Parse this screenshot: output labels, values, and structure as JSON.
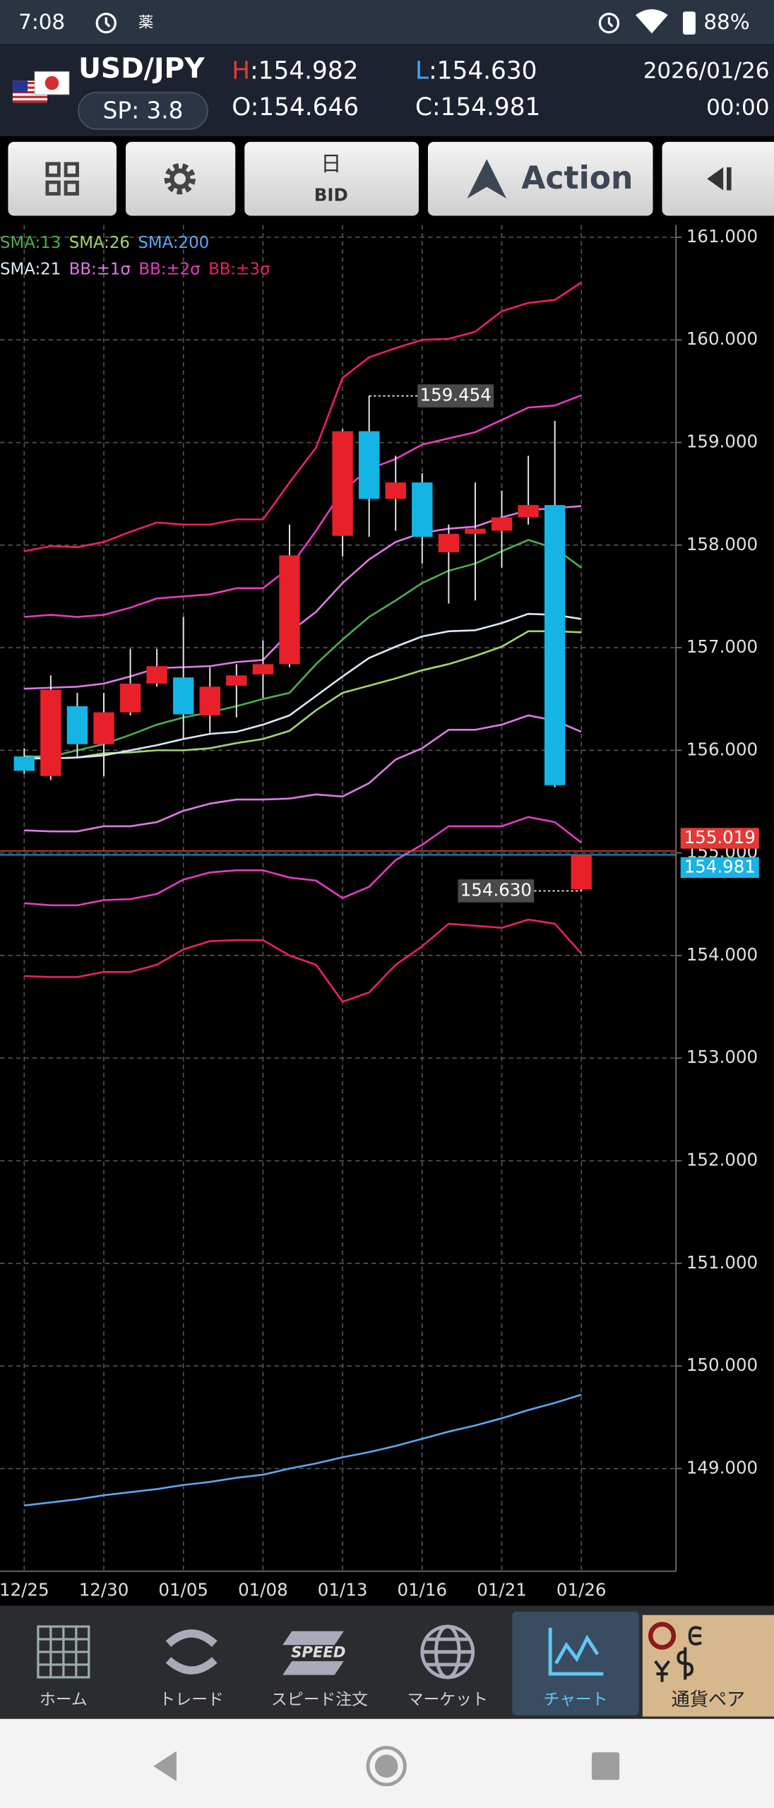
{
  "status_bar": {
    "time": "7:08",
    "icon_text": "薬",
    "battery": "88%"
  },
  "header": {
    "pair": "USD/JPY",
    "spread": "SP: 3.8",
    "high": "H:154.982",
    "low": "L:154.630",
    "open": "O:154.646",
    "close": "C:154.981",
    "date": "2026/01/26",
    "time": "00:00"
  },
  "toolbar": {
    "period": "日",
    "price_type": "BID",
    "action": "Action"
  },
  "chart": {
    "type": "candlestick",
    "categories": [
      "12/25",
      null,
      null,
      "12/30",
      null,
      null,
      "01/05",
      null,
      null,
      "01/08",
      null,
      null,
      "01/13",
      null,
      null,
      "01/16",
      null,
      null,
      "01/21",
      null,
      null,
      "01/26"
    ],
    "candles": {
      "open": [
        155.94,
        155.75,
        156.43,
        156.06,
        156.37,
        156.65,
        156.71,
        156.34,
        156.63,
        156.74,
        156.84,
        null,
        158.09,
        159.11,
        158.45,
        158.61,
        157.93,
        158.11,
        158.14,
        158.27,
        158.39,
        154.646
      ],
      "high": [
        156.02,
        156.73,
        156.56,
        156.56,
        156.99,
        156.99,
        157.3,
        156.81,
        156.84,
        157.07,
        158.2,
        null,
        159.13,
        159.454,
        158.87,
        158.7,
        158.2,
        158.61,
        158.53,
        158.87,
        159.21,
        154.982
      ],
      "low": [
        155.77,
        155.71,
        155.93,
        155.75,
        156.34,
        156.62,
        156.11,
        156.17,
        156.32,
        156.51,
        156.81,
        null,
        157.89,
        158.08,
        158.14,
        157.82,
        157.43,
        157.46,
        157.78,
        158.2,
        155.64,
        154.63
      ],
      "close": [
        155.8,
        156.59,
        156.06,
        156.37,
        156.65,
        156.82,
        156.35,
        156.62,
        156.73,
        156.84,
        157.9,
        null,
        159.11,
        158.45,
        158.61,
        158.08,
        158.11,
        158.16,
        158.27,
        158.39,
        155.66,
        154.981
      ]
    },
    "up_color": "#e8202a",
    "down_color": "#14b4e4",
    "series": [
      {
        "name": "SMA:13",
        "color": "#4caf50",
        "values": [
          155.94,
          155.94,
          156.0,
          156.06,
          156.15,
          156.25,
          156.32,
          156.37,
          156.43,
          156.5,
          156.56,
          156.84,
          157.08,
          157.3,
          157.46,
          157.63,
          157.75,
          157.82,
          157.94,
          158.05,
          157.97,
          157.78
        ]
      },
      {
        "name": "SMA:26",
        "color": "#a5d66b",
        "values": [
          155.94,
          155.92,
          155.93,
          155.97,
          155.98,
          156.0,
          156.0,
          156.02,
          156.07,
          156.11,
          156.19,
          156.39,
          156.56,
          156.63,
          156.7,
          156.78,
          156.84,
          156.92,
          157.01,
          157.16,
          157.16,
          157.15
        ]
      },
      {
        "name": "SMA:200",
        "color": "#5aa9f0",
        "values": [
          148.64,
          148.67,
          148.7,
          148.74,
          148.77,
          148.8,
          148.84,
          148.87,
          148.91,
          148.94,
          149.0,
          149.05,
          149.11,
          149.16,
          149.22,
          149.29,
          149.36,
          149.42,
          149.49,
          149.57,
          149.64,
          149.72
        ]
      },
      {
        "name": "SMA:21",
        "color": "#dce9f7",
        "values": [
          155.92,
          155.92,
          155.93,
          155.95,
          156.0,
          156.05,
          156.11,
          156.16,
          156.18,
          156.25,
          156.34,
          156.53,
          156.72,
          156.9,
          157.01,
          157.11,
          157.16,
          157.17,
          157.24,
          157.33,
          157.32,
          157.28
        ]
      },
      {
        "name": "BB:±1σ",
        "color": "#e07ae8",
        "upper": [
          156.6,
          156.61,
          156.62,
          156.65,
          156.72,
          156.8,
          156.81,
          156.82,
          156.86,
          156.88,
          157.15,
          157.35,
          157.63,
          157.86,
          158.03,
          158.12,
          158.16,
          158.18,
          158.27,
          158.34,
          158.36,
          158.38
        ],
        "lower": [
          155.22,
          155.21,
          155.21,
          155.26,
          155.26,
          155.3,
          155.41,
          155.48,
          155.52,
          155.52,
          155.53,
          155.57,
          155.55,
          155.68,
          155.91,
          156.02,
          156.2,
          156.2,
          156.25,
          156.34,
          156.29,
          156.18
        ]
      },
      {
        "name": "BB:±2σ",
        "color": "#e83cc0",
        "upper": [
          157.3,
          157.32,
          157.3,
          157.32,
          157.39,
          157.48,
          157.5,
          157.52,
          157.58,
          157.58,
          157.78,
          158.14,
          158.53,
          158.74,
          158.84,
          158.98,
          159.04,
          159.1,
          159.22,
          159.34,
          159.36,
          159.46
        ],
        "lower": [
          154.51,
          154.49,
          154.49,
          154.54,
          154.55,
          154.6,
          154.74,
          154.81,
          154.83,
          154.83,
          154.76,
          154.73,
          154.56,
          154.67,
          154.93,
          155.08,
          155.26,
          155.26,
          155.26,
          155.35,
          155.3,
          155.1
        ]
      },
      {
        "name": "BB:±3σ",
        "color": "#ee1f66",
        "upper": [
          157.94,
          157.99,
          157.98,
          158.03,
          158.13,
          158.22,
          158.2,
          158.2,
          158.25,
          158.25,
          158.61,
          158.95,
          159.63,
          159.83,
          159.92,
          160.0,
          160.01,
          160.08,
          160.28,
          160.36,
          160.39,
          160.56
        ],
        "lower": [
          153.8,
          153.79,
          153.79,
          153.84,
          153.84,
          153.91,
          154.06,
          154.14,
          154.15,
          154.15,
          154.0,
          153.91,
          153.55,
          153.64,
          153.91,
          154.09,
          154.31,
          154.29,
          154.27,
          154.35,
          154.31,
          154.02
        ]
      }
    ],
    "price_lines": [
      {
        "value": 155.019,
        "color": "#e53935"
      },
      {
        "value": 154.981,
        "color": "#19b3e6"
      }
    ],
    "high_marker": 159.454,
    "low_marker": {
      "value": 154.63,
      "label": "154.630"
    },
    "ylim": [
      148.0,
      161.12
    ],
    "yticks": [
      {
        "value": 149,
        "label": "149.000"
      },
      {
        "value": 150,
        "label": "150.000"
      },
      {
        "value": 151,
        "label": "151.000"
      },
      {
        "value": 152,
        "label": "152.000"
      },
      {
        "value": 153,
        "label": "153.000"
      },
      {
        "value": 154,
        "label": "154.000"
      },
      {
        "value": 155,
        "label": "155.000"
      },
      {
        "value": 156,
        "label": "156.000"
      },
      {
        "value": 157,
        "label": "157.000"
      },
      {
        "value": 158,
        "label": "158.000"
      },
      {
        "value": 159,
        "label": "159.000"
      },
      {
        "value": 160,
        "label": "160.000"
      },
      {
        "value": 161,
        "label": "161.000"
      }
    ],
    "grid": true
  },
  "bottom_nav": {
    "items": [
      "ホーム",
      "トレード",
      "スピード注文",
      "マーケット",
      "チャート",
      "通貨ペア"
    ],
    "speed_icon": "SPEED"
  }
}
